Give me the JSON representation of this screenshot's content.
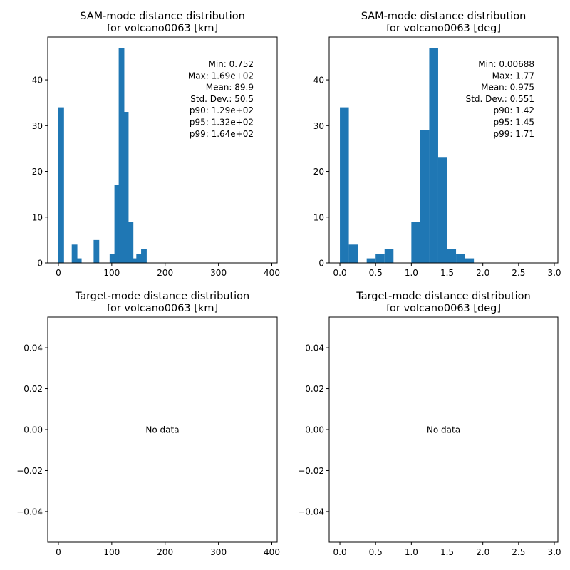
{
  "chart_data": [
    {
      "type": "bar",
      "title": "SAM-mode distance distribution\nfor volcano0063 [km]",
      "xlabel": "",
      "ylabel": "",
      "xlim": [
        -20,
        410
      ],
      "ylim": [
        0,
        49.35
      ],
      "xticks": [
        0,
        100,
        200,
        300,
        400
      ],
      "yticks": [
        0,
        10,
        20,
        30,
        40
      ],
      "grid": false,
      "bars": [
        {
          "x": 0,
          "height": 34
        },
        {
          "x": 25,
          "height": 4
        },
        {
          "x": 33,
          "height": 1
        },
        {
          "x": 66,
          "height": 5
        },
        {
          "x": 96,
          "height": 2
        },
        {
          "x": 105,
          "height": 17
        },
        {
          "x": 113,
          "height": 47
        },
        {
          "x": 121,
          "height": 33
        },
        {
          "x": 130,
          "height": 9
        },
        {
          "x": 138,
          "height": 1
        },
        {
          "x": 146,
          "height": 2
        },
        {
          "x": 155,
          "height": 3
        }
      ],
      "bin_width": 10.5,
      "stats": [
        "Min: 0.752",
        "Max: 1.69e+02",
        "Mean: 89.9",
        "Std. Dev.: 50.5",
        "p90: 1.29e+02",
        "p95: 1.32e+02",
        "p99: 1.64e+02"
      ],
      "no_data": false
    },
    {
      "type": "bar",
      "title": "SAM-mode distance distribution\nfor volcano0063 [deg]",
      "xlabel": "",
      "ylabel": "",
      "xlim": [
        -0.15,
        3.05
      ],
      "ylim": [
        0,
        49.35
      ],
      "xticks": [
        0.0,
        0.5,
        1.0,
        1.5,
        2.0,
        2.5,
        3.0
      ],
      "xtick_labels": [
        "0.0",
        "0.5",
        "1.0",
        "1.5",
        "2.0",
        "2.5",
        "3.0"
      ],
      "yticks": [
        0,
        10,
        20,
        30,
        40
      ],
      "grid": false,
      "bars": [
        {
          "x": 0.0,
          "height": 34
        },
        {
          "x": 0.125,
          "height": 4
        },
        {
          "x": 0.375,
          "height": 1
        },
        {
          "x": 0.5,
          "height": 2
        },
        {
          "x": 0.625,
          "height": 3
        },
        {
          "x": 1.0,
          "height": 9
        },
        {
          "x": 1.125,
          "height": 29
        },
        {
          "x": 1.25,
          "height": 47
        },
        {
          "x": 1.375,
          "height": 23
        },
        {
          "x": 1.5,
          "height": 3
        },
        {
          "x": 1.625,
          "height": 2
        },
        {
          "x": 1.75,
          "height": 1
        }
      ],
      "bin_width": 0.125,
      "stats": [
        "Min: 0.00688",
        "Max: 1.77",
        "Mean: 0.975",
        "Std. Dev.: 0.551",
        "p90: 1.42",
        "p95: 1.45",
        "p99: 1.71"
      ],
      "no_data": false
    },
    {
      "type": "bar",
      "title": "Target-mode distance distribution\nfor volcano0063 [km]",
      "xlabel": "",
      "ylabel": "",
      "xlim": [
        -20,
        410
      ],
      "ylim": [
        -0.055,
        0.055
      ],
      "xticks": [
        0,
        100,
        200,
        300,
        400
      ],
      "yticks": [
        -0.04,
        -0.02,
        0.0,
        0.02,
        0.04
      ],
      "ytick_labels": [
        "−0.04",
        "−0.02",
        "0.00",
        "0.02",
        "0.04"
      ],
      "grid": false,
      "bars": [],
      "no_data": true,
      "no_data_text": "No data"
    },
    {
      "type": "bar",
      "title": "Target-mode distance distribution\nfor volcano0063 [deg]",
      "xlabel": "",
      "ylabel": "",
      "xlim": [
        -0.15,
        3.05
      ],
      "ylim": [
        -0.055,
        0.055
      ],
      "xticks": [
        0.0,
        0.5,
        1.0,
        1.5,
        2.0,
        2.5,
        3.0
      ],
      "xtick_labels": [
        "0.0",
        "0.5",
        "1.0",
        "1.5",
        "2.0",
        "2.5",
        "3.0"
      ],
      "yticks": [
        -0.04,
        -0.02,
        0.0,
        0.02,
        0.04
      ],
      "ytick_labels": [
        "−0.04",
        "−0.02",
        "0.00",
        "0.02",
        "0.04"
      ],
      "grid": false,
      "bars": [],
      "no_data": true,
      "no_data_text": "No data"
    }
  ],
  "colors": {
    "bar": "#1f77b4",
    "axis": "#000000",
    "background": "#ffffff"
  }
}
